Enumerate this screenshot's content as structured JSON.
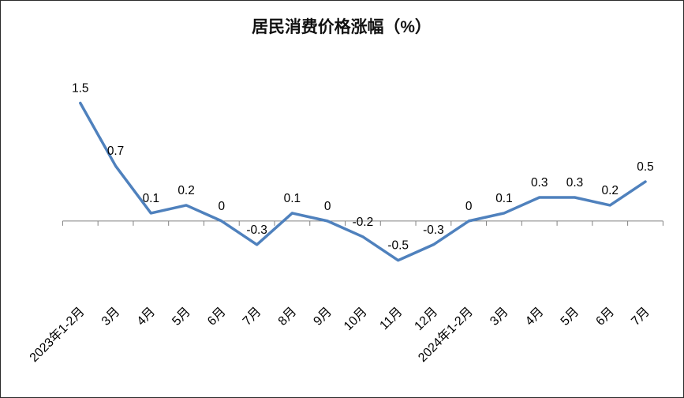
{
  "chart_data": {
    "type": "line",
    "title": "居民消费价格涨幅（%）",
    "categories": [
      "2023年1-2月",
      "3月",
      "4月",
      "5月",
      "6月",
      "7月",
      "8月",
      "9月",
      "10月",
      "11月",
      "12月",
      "2024年1-2月",
      "3月",
      "4月",
      "5月",
      "6月",
      "7月"
    ],
    "values": [
      1.5,
      0.7,
      0.1,
      0.2,
      0,
      -0.3,
      0.1,
      0,
      -0.2,
      -0.5,
      -0.3,
      0,
      0.1,
      0.3,
      0.3,
      0.2,
      0.5
    ],
    "xlabel": "",
    "ylabel": "",
    "ylim": [
      -1,
      2
    ],
    "grid": false,
    "legend": "none",
    "data_labels": true,
    "line_color": "#4F81BD",
    "axis_color": "#808080",
    "label_color": "#000000"
  }
}
